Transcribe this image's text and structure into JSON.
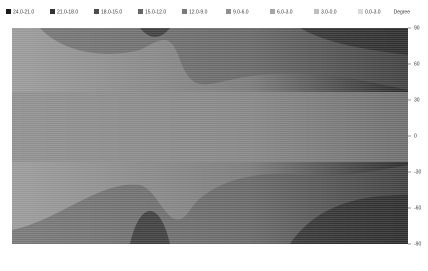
{
  "chart_data": {
    "type": "contour",
    "y_axis_label": "Degree",
    "series": [
      {
        "name": "24.0-21.0",
        "color": "#1a1a1a"
      },
      {
        "name": "21.0-18.0",
        "color": "#333333"
      },
      {
        "name": "18.0-15.0",
        "color": "#4d4d4d"
      },
      {
        "name": "15.0-12.0",
        "color": "#666666"
      },
      {
        "name": "12.0-9.0",
        "color": "#7a7a7a"
      },
      {
        "name": "9.0-6.0",
        "color": "#8f8f8f"
      },
      {
        "name": "6.0-3.0",
        "color": "#a6a6a6"
      },
      {
        "name": "3.0-0.0",
        "color": "#bfbfbf"
      },
      {
        "name": "0.0-3.0",
        "color": "#d9d9d9"
      }
    ],
    "ylim": [
      -90,
      90
    ],
    "yticks": [
      90,
      60,
      30,
      0,
      -30,
      -60,
      -90
    ]
  }
}
